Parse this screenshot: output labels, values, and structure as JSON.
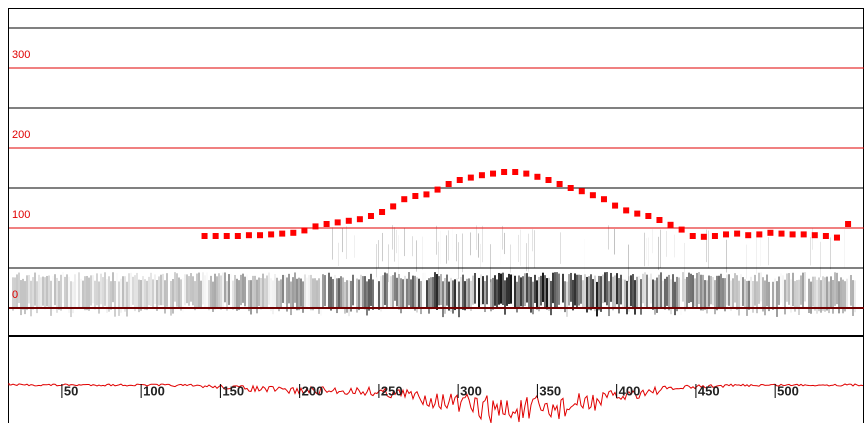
{
  "chart_data": {
    "type": "scatter",
    "x": [
      140,
      147,
      154,
      161,
      168,
      175,
      182,
      189,
      196,
      203,
      210,
      217,
      224,
      231,
      238,
      245,
      252,
      259,
      266,
      273,
      280,
      287,
      294,
      301,
      308,
      315,
      322,
      329,
      336,
      343,
      350,
      357,
      364,
      371,
      378,
      385,
      392,
      399,
      406,
      413,
      420,
      427,
      434,
      441,
      448,
      455,
      462,
      469,
      476,
      483,
      490,
      497,
      504,
      511,
      518,
      525,
      532,
      539,
      546
    ],
    "series": [
      {
        "color": "#ff0000",
        "values": [
          90,
          90,
          90,
          90,
          91,
          91,
          92,
          93,
          94,
          97,
          102,
          105,
          107,
          109,
          111,
          115,
          120,
          127,
          136,
          140,
          142,
          148,
          155,
          160,
          163,
          166,
          168,
          170,
          170,
          168,
          164,
          160,
          155,
          150,
          146,
          141,
          136,
          128,
          122,
          118,
          115,
          110,
          104,
          98,
          90,
          89,
          90,
          92,
          93,
          91,
          92,
          94,
          93,
          92,
          92,
          91,
          90,
          88,
          105
        ]
      }
    ],
    "xlim": [
      16,
      551
    ],
    "ylim": [
      0,
      375
    ],
    "xticks": [
      50,
      100,
      150,
      200,
      250,
      300,
      350,
      400,
      450,
      500
    ],
    "yticks": [
      0,
      100,
      200,
      300
    ],
    "grid_color": "#e00000",
    "tick_label_color": "#e00000"
  }
}
